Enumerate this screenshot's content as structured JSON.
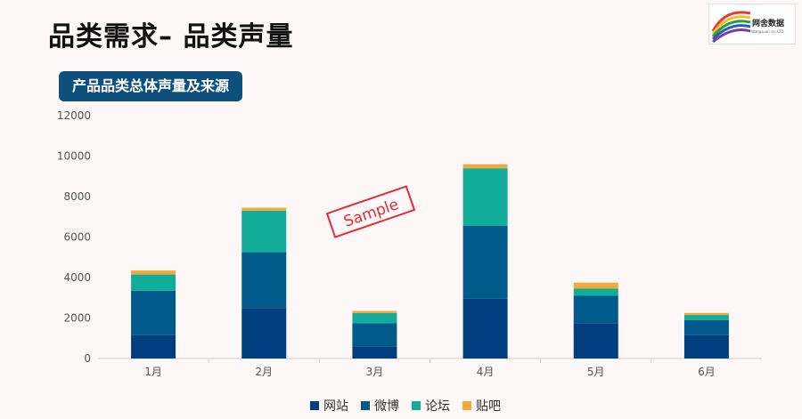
{
  "header": {
    "title": "品类需求– 品类声量",
    "section_label": "产品品类总体声量及来源",
    "logo_text": "网舍数据",
    "logo_sub": "Wangsuan co.,LTD"
  },
  "watermark": "Sample",
  "colors": {
    "网站": "#003f7f",
    "微博": "#005a8c",
    "论坛": "#12ac9a",
    "贴吧": "#f2a93b"
  },
  "chart_data": {
    "type": "bar",
    "stacked": true,
    "categories": [
      "1月",
      "2月",
      "3月",
      "4月",
      "5月",
      "6月"
    ],
    "series": [
      {
        "name": "网站",
        "values": [
          1150,
          2500,
          600,
          2950,
          1750,
          1150
        ]
      },
      {
        "name": "微博",
        "values": [
          2200,
          2750,
          1150,
          3600,
          1350,
          750
        ]
      },
      {
        "name": "论坛",
        "values": [
          800,
          2050,
          500,
          2850,
          350,
          250
        ]
      },
      {
        "name": "贴吧",
        "values": [
          200,
          150,
          100,
          200,
          300,
          100
        ]
      }
    ],
    "y_ticks": [
      "0",
      "2000",
      "4000",
      "6000",
      "8000",
      "10000",
      "12000"
    ],
    "ylim": [
      0,
      12000
    ],
    "grid": false,
    "legend_position": "bottom"
  }
}
